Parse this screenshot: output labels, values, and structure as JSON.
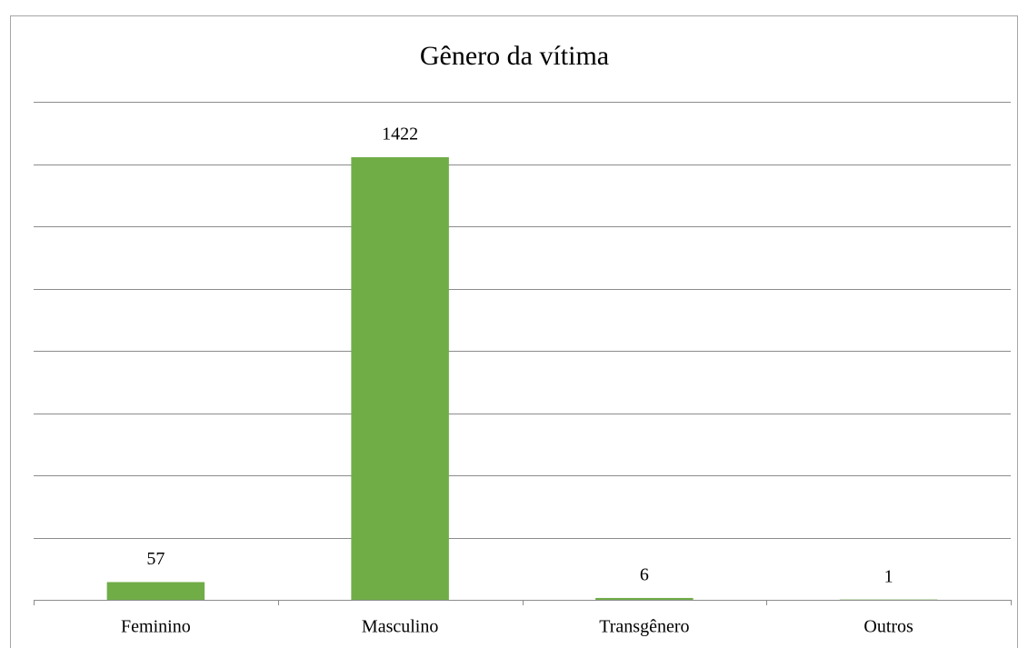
{
  "chart_data": {
    "type": "bar",
    "title": "Gênero da vítima",
    "categories": [
      "Feminino",
      "Masculino",
      "Transgênero",
      "Outros"
    ],
    "values": [
      57,
      1422,
      6,
      1
    ],
    "color": "#70ad47",
    "ylim": [
      0,
      1600
    ],
    "yticks": [
      0,
      200,
      400,
      600,
      800,
      1000,
      1200,
      1400,
      1600
    ],
    "grid": true
  }
}
